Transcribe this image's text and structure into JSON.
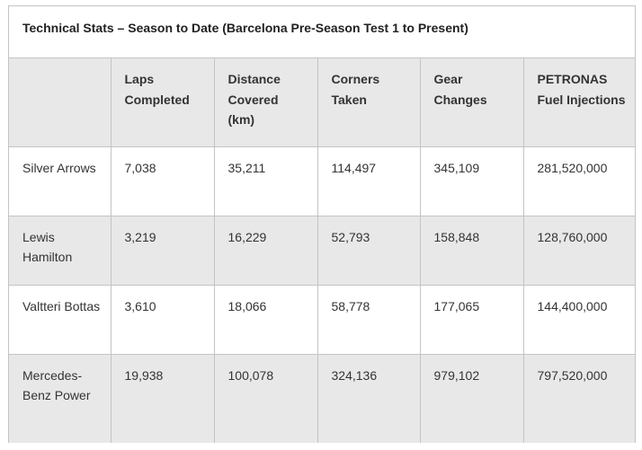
{
  "title": "Technical Stats – Season to Date (Barcelona Pre-Season Test 1 to Present)",
  "table": {
    "headers": [
      "",
      "Laps Completed",
      "Distance Covered (km)",
      "Corners Taken",
      "Gear Changes",
      "PETRONAS Fuel Injections"
    ],
    "rows": [
      [
        "Silver Arrows",
        "7,038",
        "35,211",
        "114,497",
        "345,109",
        "281,520,000"
      ],
      [
        "Lewis Hamilton",
        "3,219",
        "16,229",
        "52,793",
        "158,848",
        "128,760,000"
      ],
      [
        "Valtteri Bottas",
        "3,610",
        "18,066",
        "58,778",
        "177,065",
        "144,400,000"
      ],
      [
        "Mercedes-Benz Power",
        "19,938",
        "100,078",
        "324,136",
        "979,102",
        "797,520,000"
      ]
    ]
  }
}
